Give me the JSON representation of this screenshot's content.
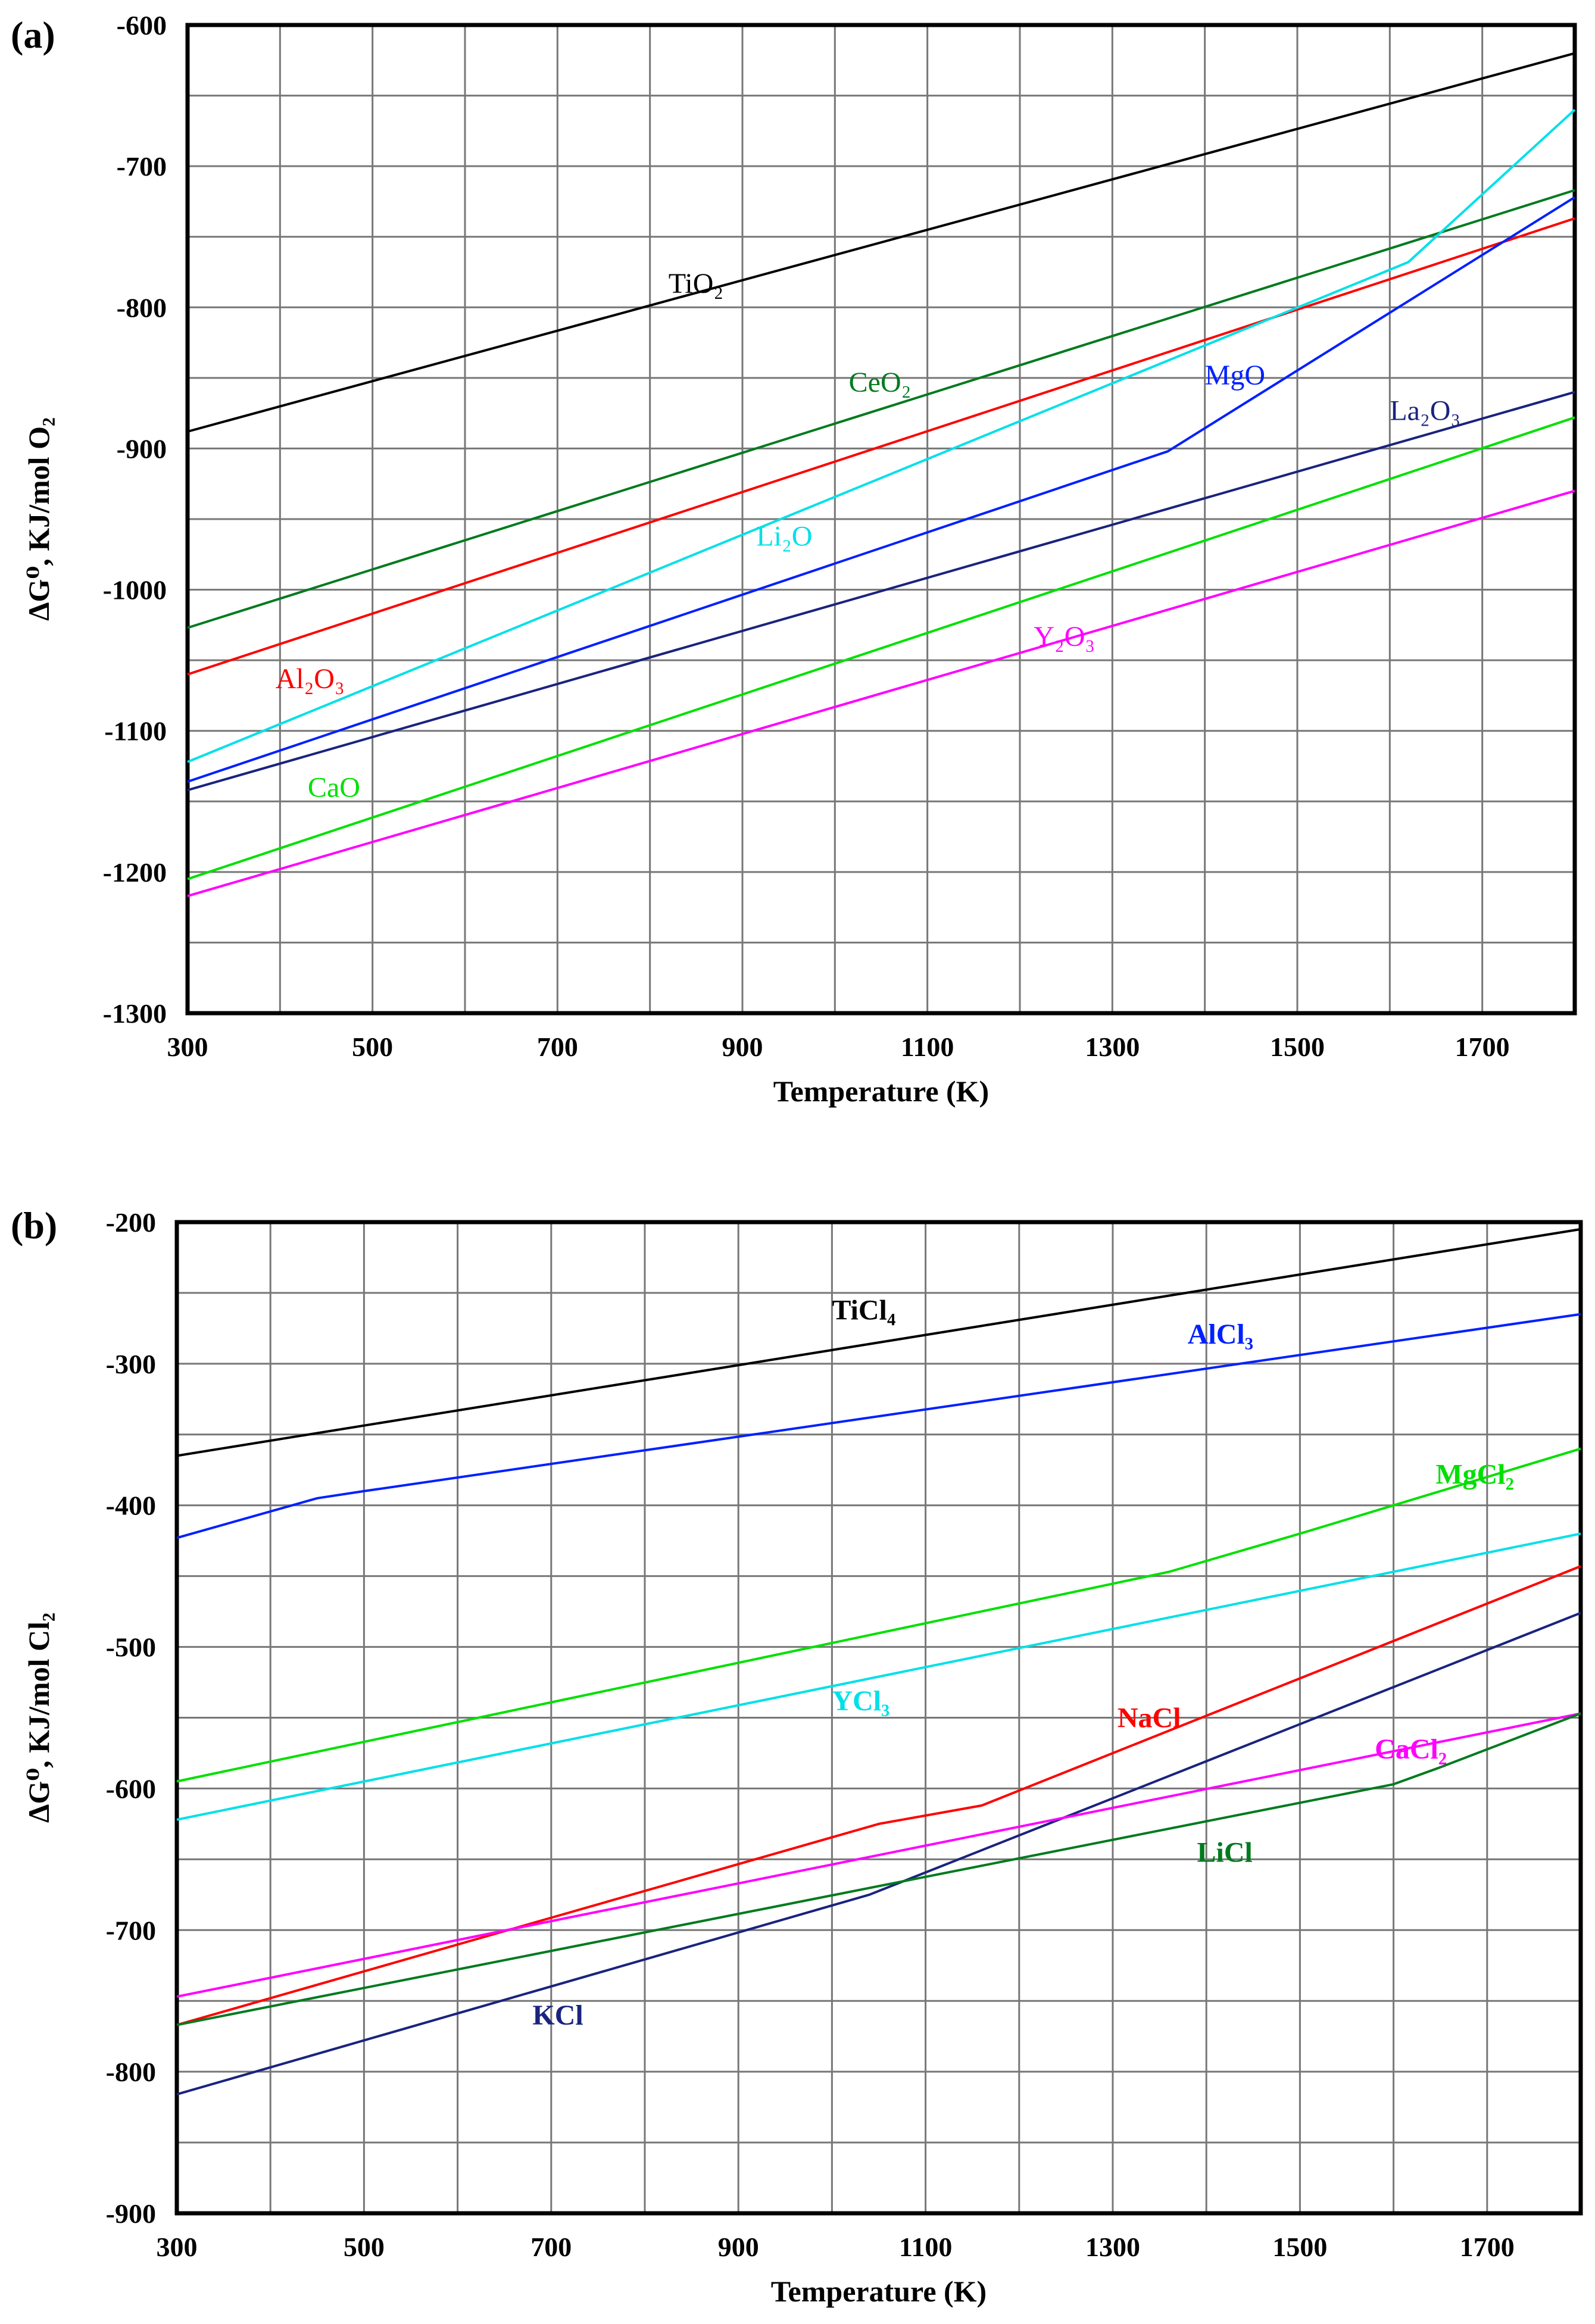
{
  "figure_title": "",
  "chart_data": [
    {
      "type": "line",
      "panel_label": "(a)",
      "title": "",
      "xlabel": "Temperature (K)",
      "ylabel": "ΔG⁰, KJ/mol O₂",
      "xlim": [
        300,
        1800
      ],
      "ylim": [
        -1300,
        -600
      ],
      "grid": true,
      "xticks": [
        300,
        500,
        700,
        900,
        1100,
        1300,
        1500,
        1700
      ],
      "xtick_labels": [
        "300",
        "500",
        "700",
        "900",
        "1100",
        "1300",
        "1500",
        "1700"
      ],
      "yticks": [
        -600,
        -700,
        -800,
        -900,
        -1000,
        -1100,
        -1200,
        -1300
      ],
      "ytick_labels": [
        "-600",
        "-700",
        "-800",
        "-900",
        "-1000",
        "-1100",
        "-1200",
        "-1300"
      ],
      "series": [
        {
          "name": "TiO₂",
          "color": "#000000",
          "points": [
            [
              300,
              -888
            ],
            [
              1800,
              -620
            ]
          ],
          "label_at": [
            820,
            -783
          ]
        },
        {
          "name": "CeO₂",
          "color": "#007a1e",
          "points": [
            [
              300,
              -1027
            ],
            [
              1800,
              -717
            ]
          ],
          "label_at": [
            1015,
            -853
          ]
        },
        {
          "name": "Al₂O₃",
          "color": "#ff0000",
          "points": [
            [
              300,
              -1060
            ],
            [
              1800,
              -737
            ]
          ],
          "label_at": [
            395,
            -1063
          ]
        },
        {
          "name": "Li₂O",
          "color": "#00e0e8",
          "points": [
            [
              300,
              -1122
            ],
            [
              1620,
              -768
            ],
            [
              1800,
              -660
            ]
          ],
          "label_at": [
            915,
            -962
          ]
        },
        {
          "name": "MgO",
          "color": "#0020ff",
          "points": [
            [
              300,
              -1136
            ],
            [
              1360,
              -902
            ],
            [
              1800,
              -722
            ]
          ],
          "label_at": [
            1400,
            -848
          ]
        },
        {
          "name": "La₂O₃",
          "color": "#1a237e",
          "points": [
            [
              300,
              -1142
            ],
            [
              1800,
              -860
            ]
          ],
          "label_at": [
            1600,
            -873
          ]
        },
        {
          "name": "CaO",
          "color": "#00e000",
          "points": [
            [
              300,
              -1205
            ],
            [
              1800,
              -878
            ]
          ],
          "label_at": [
            430,
            -1140
          ]
        },
        {
          "name": "Y₂O₃",
          "color": "#ff00ff",
          "points": [
            [
              300,
              -1217
            ],
            [
              1800,
              -930
            ]
          ],
          "label_at": [
            1215,
            -1033
          ]
        }
      ]
    },
    {
      "type": "line",
      "panel_label": "(b)",
      "title": "",
      "xlabel": "Temperature (K)",
      "ylabel": "ΔG⁰, KJ/mol Cl₂",
      "xlim": [
        300,
        1800
      ],
      "ylim": [
        -900,
        -200
      ],
      "grid": true,
      "xticks": [
        300,
        500,
        700,
        900,
        1100,
        1300,
        1500,
        1700
      ],
      "xtick_labels": [
        "300",
        "500",
        "700",
        "900",
        "1100",
        "1300",
        "1500",
        "1700"
      ],
      "yticks": [
        -200,
        -300,
        -400,
        -500,
        -600,
        -700,
        -800,
        -900
      ],
      "ytick_labels": [
        "-200",
        "-300",
        "-400",
        "-500",
        "-600",
        "-700",
        "-800",
        "-900"
      ],
      "series": [
        {
          "name": "TiCl₄",
          "color": "#000000",
          "points": [
            [
              300,
              -365
            ],
            [
              1800,
              -205
            ]
          ],
          "label_at": [
            1000,
            -262
          ]
        },
        {
          "name": "AlCl₃",
          "color": "#0020ff",
          "points": [
            [
              300,
              -423
            ],
            [
              450,
              -395
            ],
            [
              500,
              -390
            ],
            [
              1800,
              -265
            ]
          ],
          "label_at": [
            1380,
            -279
          ]
        },
        {
          "name": "MgCl₂",
          "color": "#00e000",
          "points": [
            [
              300,
              -595
            ],
            [
              1360,
              -447
            ],
            [
              1500,
              -420
            ],
            [
              1800,
              -360
            ]
          ],
          "label_at": [
            1645,
            -378
          ]
        },
        {
          "name": "YCl₃",
          "color": "#00e0e8",
          "points": [
            [
              300,
              -622
            ],
            [
              1800,
              -420
            ]
          ],
          "label_at": [
            1000,
            -538
          ]
        },
        {
          "name": "NaCl",
          "color": "#ff0000",
          "points": [
            [
              300,
              -767
            ],
            [
              1050,
              -625
            ],
            [
              1160,
              -612
            ],
            [
              1800,
              -443
            ]
          ],
          "label_at": [
            1305,
            -550
          ]
        },
        {
          "name": "KCl",
          "color": "#1a237e",
          "points": [
            [
              300,
              -816
            ],
            [
              1040,
              -675
            ],
            [
              1800,
              -476
            ]
          ],
          "label_at": [
            680,
            -760
          ]
        },
        {
          "name": "CaCl₂",
          "color": "#ff00ff",
          "points": [
            [
              300,
              -747
            ],
            [
              1800,
              -547
            ]
          ],
          "label_at": [
            1580,
            -572
          ]
        },
        {
          "name": "LiCl",
          "color": "#007a1e",
          "points": [
            [
              300,
              -767
            ],
            [
              1600,
              -597
            ],
            [
              1650,
              -585
            ],
            [
              1800,
              -547
            ]
          ],
          "label_at": [
            1390,
            -645
          ]
        }
      ]
    }
  ]
}
